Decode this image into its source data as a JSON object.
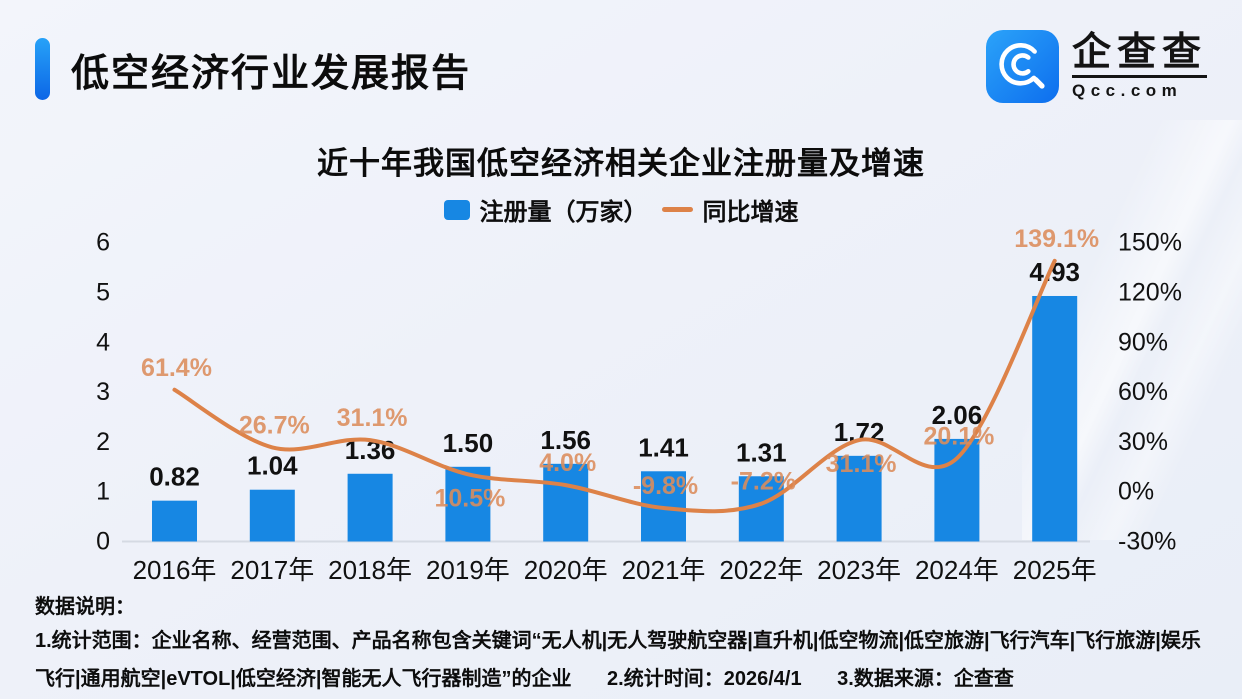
{
  "header": {
    "title": "低空经济行业发展报告",
    "logo": {
      "name_cn": "企查查",
      "name_en": "Qcc.com"
    }
  },
  "chart": {
    "title": "近十年我国低空经济相关企业注册量及增速",
    "legend": [
      {
        "label": "注册量（万家）",
        "swatch": "square",
        "color": "#1787e3"
      },
      {
        "label": "同比增速",
        "swatch": "dash",
        "color": "#dd8248"
      }
    ]
  },
  "chart_data": {
    "type": "bar+line",
    "title": "近十年我国低空经济相关企业注册量及增速",
    "categories": [
      "2016年",
      "2017年",
      "2018年",
      "2019年",
      "2020年",
      "2021年",
      "2022年",
      "2023年",
      "2024年",
      "2025年"
    ],
    "series": [
      {
        "name": "注册量（万家）",
        "type": "bar",
        "axis": "left",
        "values": [
          0.82,
          1.04,
          1.36,
          1.5,
          1.56,
          1.41,
          1.31,
          1.72,
          2.06,
          4.93
        ],
        "labels": [
          "0.82",
          "1.04",
          "1.36",
          "1.50",
          "1.56",
          "1.41",
          "1.31",
          "1.72",
          "2.06",
          "4.93"
        ]
      },
      {
        "name": "同比增速",
        "type": "line",
        "axis": "right",
        "values": [
          61.4,
          26.7,
          31.1,
          10.5,
          4.0,
          -9.8,
          -7.2,
          31.1,
          20.1,
          139.1
        ],
        "labels": [
          "61.4%",
          "26.7%",
          "31.1%",
          "10.5%",
          "4.0%",
          "-9.8%",
          "-7.2%",
          "31.1%",
          "20.1%",
          "139.1%"
        ],
        "label_placement": [
          "above",
          "above",
          "above",
          "below",
          "above",
          "above",
          "above",
          "below",
          "above",
          "above"
        ]
      }
    ],
    "left_axis": {
      "range": [
        0,
        6
      ],
      "ticks": [
        0,
        1,
        2,
        3,
        4,
        5,
        6
      ],
      "tick_labels": [
        "0",
        "1",
        "2",
        "3",
        "4",
        "5",
        "6"
      ]
    },
    "right_axis": {
      "range": [
        -30,
        150
      ],
      "ticks": [
        -30,
        0,
        30,
        60,
        90,
        120,
        150
      ],
      "tick_labels": [
        "-30%",
        "0%",
        "30%",
        "60%",
        "90%",
        "120%",
        "150%"
      ]
    },
    "grid": false,
    "legend_position": "top",
    "colors": {
      "bar": "#1787e3",
      "line": "#dd8248",
      "pct_label": "#dc8d5c",
      "value_label": "#111111",
      "axis_line": "#d5dae3",
      "tick_label": "#111111"
    }
  },
  "footer": {
    "heading": "数据说明：",
    "notes": [
      "1.统计范围：企业名称、经营范围、产品名称包含关键词“无人机|无人驾驶航空器|直升机|低空物流|低空旅游|飞行汽车|飞行旅游|娱乐飞行|通用航空|eVTOL|低空经济|智能无人飞行器制造”的企业",
      "2.统计时间：2026/4/1",
      "3.数据来源：企查查"
    ]
  }
}
